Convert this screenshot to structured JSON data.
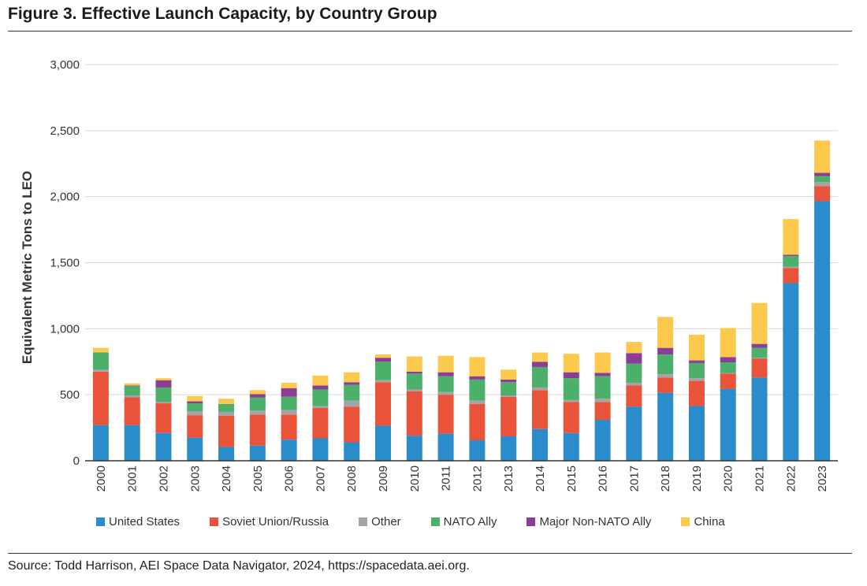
{
  "page": {
    "title": "Figure 3. Effective Launch Capacity, by Country Group",
    "source": "Source: Todd Harrison, AEI Space Data Navigator, 2024, https://spacedata.aei.org."
  },
  "chart_data": {
    "type": "bar",
    "stacked": true,
    "ylabel": "Equivalent Metric Tons to LEO",
    "ylim": [
      0,
      3000
    ],
    "yticks": [
      "0",
      "500",
      "1,000",
      "1,500",
      "2,000",
      "2,500",
      "3,000"
    ],
    "ytick_values": [
      0,
      500,
      1000,
      1500,
      2000,
      2500,
      3000
    ],
    "grid": true,
    "legend_position": "bottom",
    "categories": [
      "2000",
      "2001",
      "2002",
      "2003",
      "2004",
      "2005",
      "2006",
      "2007",
      "2008",
      "2009",
      "2010",
      "2011",
      "2012",
      "2013",
      "2014",
      "2015",
      "2016",
      "2017",
      "2018",
      "2019",
      "2020",
      "2021",
      "2022",
      "2023"
    ],
    "series": [
      {
        "name": "United States",
        "color": "#2a8ccb",
        "values": [
          270,
          270,
          210,
          175,
          105,
          115,
          160,
          170,
          140,
          265,
          190,
          205,
          155,
          185,
          240,
          210,
          310,
          410,
          515,
          415,
          545,
          630,
          1345,
          1965
        ]
      },
      {
        "name": "Soviet Union/Russia",
        "color": "#e8533a",
        "values": [
          405,
          210,
          225,
          170,
          235,
          235,
          190,
          230,
          270,
          330,
          335,
          295,
          275,
          300,
          295,
          235,
          135,
          160,
          115,
          190,
          115,
          145,
          115,
          115
        ]
      },
      {
        "name": "Other",
        "color": "#a3a3a8",
        "values": [
          15,
          15,
          10,
          30,
          30,
          30,
          35,
          15,
          45,
          15,
          15,
          20,
          25,
          10,
          20,
          15,
          25,
          20,
          25,
          20,
          5,
          5,
          10,
          30
        ]
      },
      {
        "name": "NATO Ally",
        "color": "#4caf6a",
        "values": [
          130,
          70,
          110,
          60,
          60,
          100,
          100,
          125,
          120,
          140,
          120,
          120,
          160,
          100,
          155,
          165,
          170,
          145,
          150,
          115,
          80,
          75,
          80,
          45
        ]
      },
      {
        "name": "Major Non-NATO Ally",
        "color": "#8b3e96",
        "values": [
          0,
          5,
          55,
          15,
          0,
          25,
          65,
          30,
          20,
          30,
          15,
          30,
          25,
          20,
          40,
          45,
          25,
          80,
          50,
          20,
          40,
          30,
          10,
          25
        ]
      },
      {
        "name": "China",
        "color": "#fdc94d",
        "values": [
          35,
          15,
          15,
          40,
          40,
          30,
          40,
          75,
          75,
          25,
          115,
          125,
          145,
          75,
          70,
          140,
          155,
          85,
          235,
          195,
          220,
          310,
          270,
          245
        ]
      }
    ]
  }
}
